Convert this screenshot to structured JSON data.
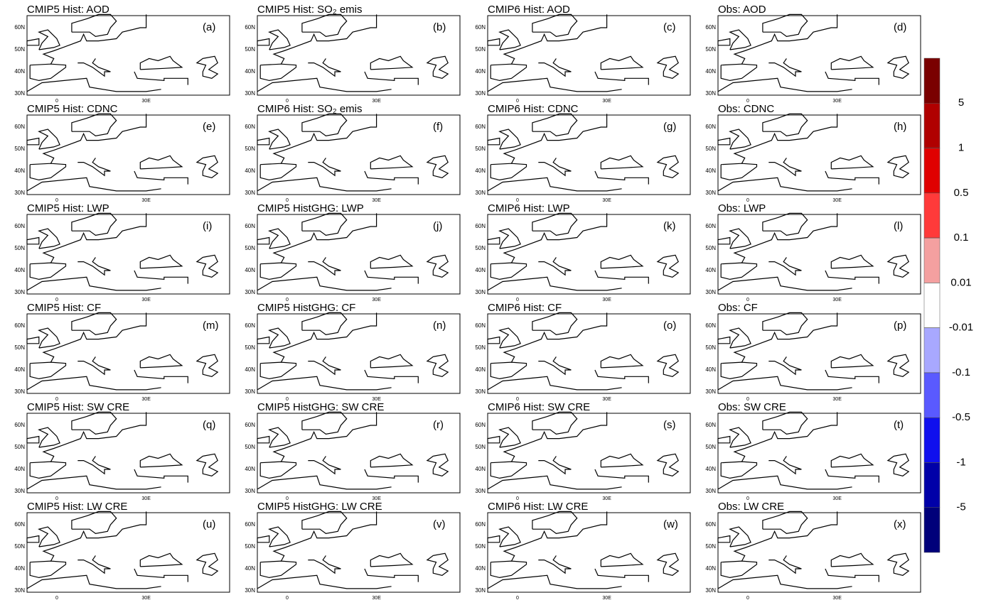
{
  "panels": [
    {
      "title": "CMIP5 Hist: AOD",
      "letter": "(a)"
    },
    {
      "title": "CMIP5 Hist: SO₂ emis",
      "letter": "(b)"
    },
    {
      "title": "CMIP6 Hist: AOD",
      "letter": "(c)"
    },
    {
      "title": "Obs: AOD",
      "letter": "(d)"
    },
    {
      "title": "CMIP5 Hist: CDNC",
      "letter": "(e)"
    },
    {
      "title": "CMIP6 Hist: SO₂ emis",
      "letter": "(f)"
    },
    {
      "title": "CMIP6 Hist: CDNC",
      "letter": "(g)"
    },
    {
      "title": "Obs: CDNC",
      "letter": "(h)"
    },
    {
      "title": "CMIP5 Hist: LWP",
      "letter": "(i)"
    },
    {
      "title": "CMIP5 HistGHG: LWP",
      "letter": "(j)"
    },
    {
      "title": "CMIP6 Hist: LWP",
      "letter": "(k)"
    },
    {
      "title": "Obs: LWP",
      "letter": "(l)"
    },
    {
      "title": "CMIP5 Hist: CF",
      "letter": "(m)"
    },
    {
      "title": "CMIP5 HistGHG: CF",
      "letter": "(n)"
    },
    {
      "title": "CMIP6 Hist: CF",
      "letter": "(o)"
    },
    {
      "title": "Obs: CF",
      "letter": "(p)"
    },
    {
      "title": "CMIP5 Hist: SW CRE",
      "letter": "(q)"
    },
    {
      "title": "CMIP5 HistGHG: SW CRE",
      "letter": "(r)"
    },
    {
      "title": "CMIP6 Hist: SW CRE",
      "letter": "(s)"
    },
    {
      "title": "Obs: SW CRE",
      "letter": "(t)"
    },
    {
      "title": "CMIP5 Hist: LW CRE",
      "letter": "(u)"
    },
    {
      "title": "CMIP5 HistGHG: LW CRE",
      "letter": "(v)"
    },
    {
      "title": "CMIP6 Hist: LW CRE",
      "letter": "(w)"
    },
    {
      "title": "Obs: LW CRE",
      "letter": "(x)"
    }
  ],
  "lat_labels": [
    "60N",
    "50N",
    "40N",
    "30N"
  ],
  "lon_labels": [
    "0",
    "30E"
  ],
  "colorbar": {
    "colors": [
      "#7a0000",
      "#b00000",
      "#e00000",
      "#ff3a3a",
      "#f4a0a0",
      "#ffffff",
      "#a8a8ff",
      "#5a5aff",
      "#1010ee",
      "#0000a8",
      "#00007a"
    ],
    "ticks": [
      5,
      1,
      0.5,
      0.1,
      0.01,
      -0.01,
      -0.1,
      -0.5,
      -1,
      -5
    ]
  }
}
